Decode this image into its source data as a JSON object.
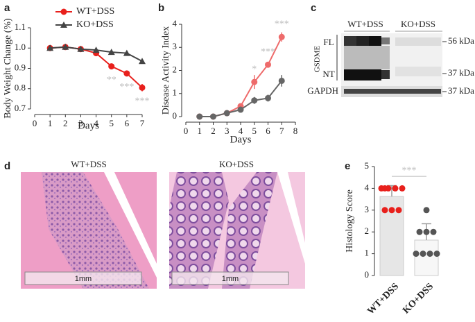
{
  "panels": {
    "a": "a",
    "b": "b",
    "c": "c",
    "d": "d",
    "e": "e"
  },
  "blot": {
    "groups": [
      "WT+DSS",
      "KO+DSS"
    ],
    "fl": "FL",
    "nt": "NT",
    "protein": "GSDME",
    "control": "GAPDH",
    "markers": [
      "56 kDa",
      "37 kDa",
      "37 kDa"
    ]
  },
  "histology": {
    "groups": [
      "WT+DSS",
      "KO+DSS"
    ],
    "scale": [
      "1mm",
      "1mm"
    ]
  },
  "chart_data": [
    {
      "type": "line",
      "x_label": "Days",
      "y_label": "Body Weight Change (%)",
      "x": [
        1,
        2,
        3,
        4,
        5,
        6,
        7
      ],
      "xlim": [
        0,
        7
      ],
      "xticks": [
        0,
        1,
        2,
        3,
        4,
        5,
        6,
        7
      ],
      "ylim": [
        0.7,
        1.1
      ],
      "yticks": [
        0.7,
        0.8,
        0.9,
        {
          "value": 1,
          "label": "1.0"
        },
        1.1
      ],
      "legend": "top-left",
      "series": [
        {
          "name": "WT+DSS",
          "color": "#e8201c",
          "marker": "circle",
          "values": [
            1.0,
            1.005,
            0.995,
            0.975,
            0.91,
            0.875,
            0.805
          ],
          "errors": [
            0.005,
            0.005,
            0.006,
            0.012,
            0.012,
            0.012,
            0.018
          ]
        },
        {
          "name": "KO+DSS",
          "color": "#444444",
          "marker": "triangle",
          "values": [
            1.0,
            1.005,
            0.995,
            0.99,
            0.98,
            0.975,
            0.935
          ],
          "errors": [
            0.004,
            0.004,
            0.005,
            0.006,
            0.006,
            0.006,
            0.01
          ]
        }
      ],
      "annotations": [
        {
          "text": "**",
          "x": 5
        },
        {
          "text": "***",
          "x": 6
        },
        {
          "text": "***",
          "x": 7
        }
      ]
    },
    {
      "type": "line",
      "x_label": "Days",
      "y_label": "Disease Activity Index",
      "x": [
        1,
        2,
        3,
        4,
        5,
        6,
        7
      ],
      "xlim": [
        0,
        8
      ],
      "xticks": [
        0,
        1,
        2,
        3,
        4,
        5,
        6,
        7,
        8
      ],
      "ylim": [
        0,
        4
      ],
      "yticks": [
        0,
        1,
        2,
        3,
        4
      ],
      "series": [
        {
          "name": "WT+DSS",
          "color": "#ee6b6b",
          "marker": "circle",
          "values": [
            0,
            0,
            0.15,
            0.45,
            1.5,
            2.25,
            3.45
          ],
          "errors": [
            0.03,
            0.03,
            0.05,
            0.1,
            0.3,
            0.12,
            0.2
          ]
        },
        {
          "name": "KO+DSS",
          "color": "#666666",
          "marker": "circle",
          "values": [
            0,
            0,
            0.15,
            0.3,
            0.7,
            0.8,
            1.55
          ],
          "errors": [
            0.03,
            0.03,
            0.05,
            0.08,
            0.15,
            0.15,
            0.25
          ]
        }
      ],
      "annotations": [
        {
          "text": "*",
          "x": 5
        },
        {
          "text": "***",
          "x": 6
        },
        {
          "text": "***",
          "x": 7
        }
      ]
    },
    {
      "type": "dotbar",
      "y_label": "Histology Score",
      "categories": [
        "WT+DSS",
        "KO+DSS"
      ],
      "values": [
        3.625,
        1.625
      ],
      "errors": [
        0.5,
        0.75
      ],
      "colors": [
        "#e8201c",
        "#555555"
      ],
      "points": [
        [
          4,
          4,
          4,
          4,
          4,
          3,
          3,
          3
        ],
        [
          3,
          2,
          2,
          2,
          1,
          1,
          1,
          1
        ]
      ],
      "ylim": [
        0,
        5
      ],
      "yticks": [
        0,
        1,
        2,
        3,
        4,
        5
      ],
      "annotations": [
        {
          "text": "***"
        }
      ]
    }
  ]
}
